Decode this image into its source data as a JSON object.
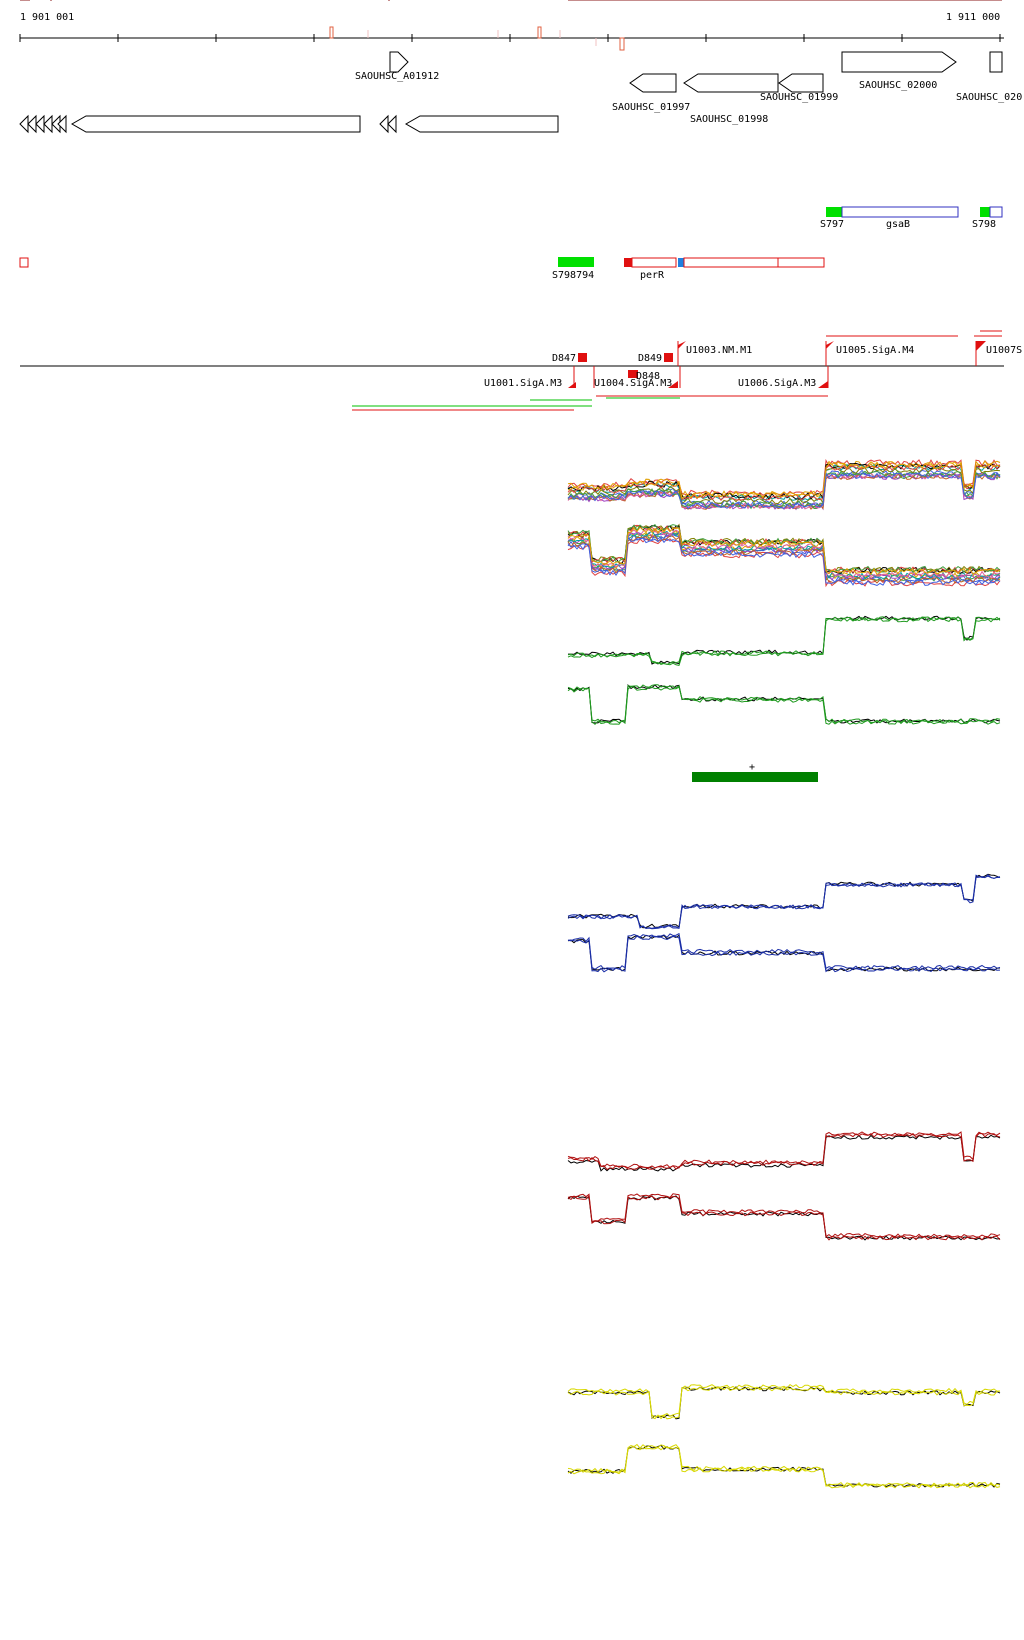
{
  "ruler": {
    "start": "1 901 001",
    "end": "1 911 000"
  },
  "genes": [
    {
      "label": "SAOUHSC_A01912",
      "strand": "+"
    },
    {
      "label": "SAOUHSC_01997",
      "strand": "-"
    },
    {
      "label": "SAOUHSC_01998",
      "strand": "-"
    },
    {
      "label": "SAOUHSC_01999",
      "strand": "-"
    },
    {
      "label": "SAOUHSC_02000",
      "strand": "+"
    },
    {
      "label": "SAOUHSC_020",
      "strand": "+"
    }
  ],
  "features": [
    {
      "label": "S797"
    },
    {
      "label": "gsaB"
    },
    {
      "label": "S798"
    },
    {
      "label": "S798794"
    },
    {
      "label": "perR"
    }
  ],
  "segments": [
    {
      "label": "D847"
    },
    {
      "label": "D849"
    },
    {
      "label": "D848"
    },
    {
      "label": "U1003.NM.M1"
    },
    {
      "label": "U1005.SigA.M4"
    },
    {
      "label": "U1007S"
    },
    {
      "label": "U1001.SigA.M3"
    },
    {
      "label": "U1004.SigA.M3"
    },
    {
      "label": "U1006.SigA.M3"
    }
  ],
  "marker": {
    "label": "+",
    "color": "#008000"
  },
  "track_colors": {
    "green": "#1f9a1f",
    "blue": "#1b2fa8",
    "red": "#b01010",
    "yellow": "#d8d800",
    "reference": "#8b1a1a"
  }
}
